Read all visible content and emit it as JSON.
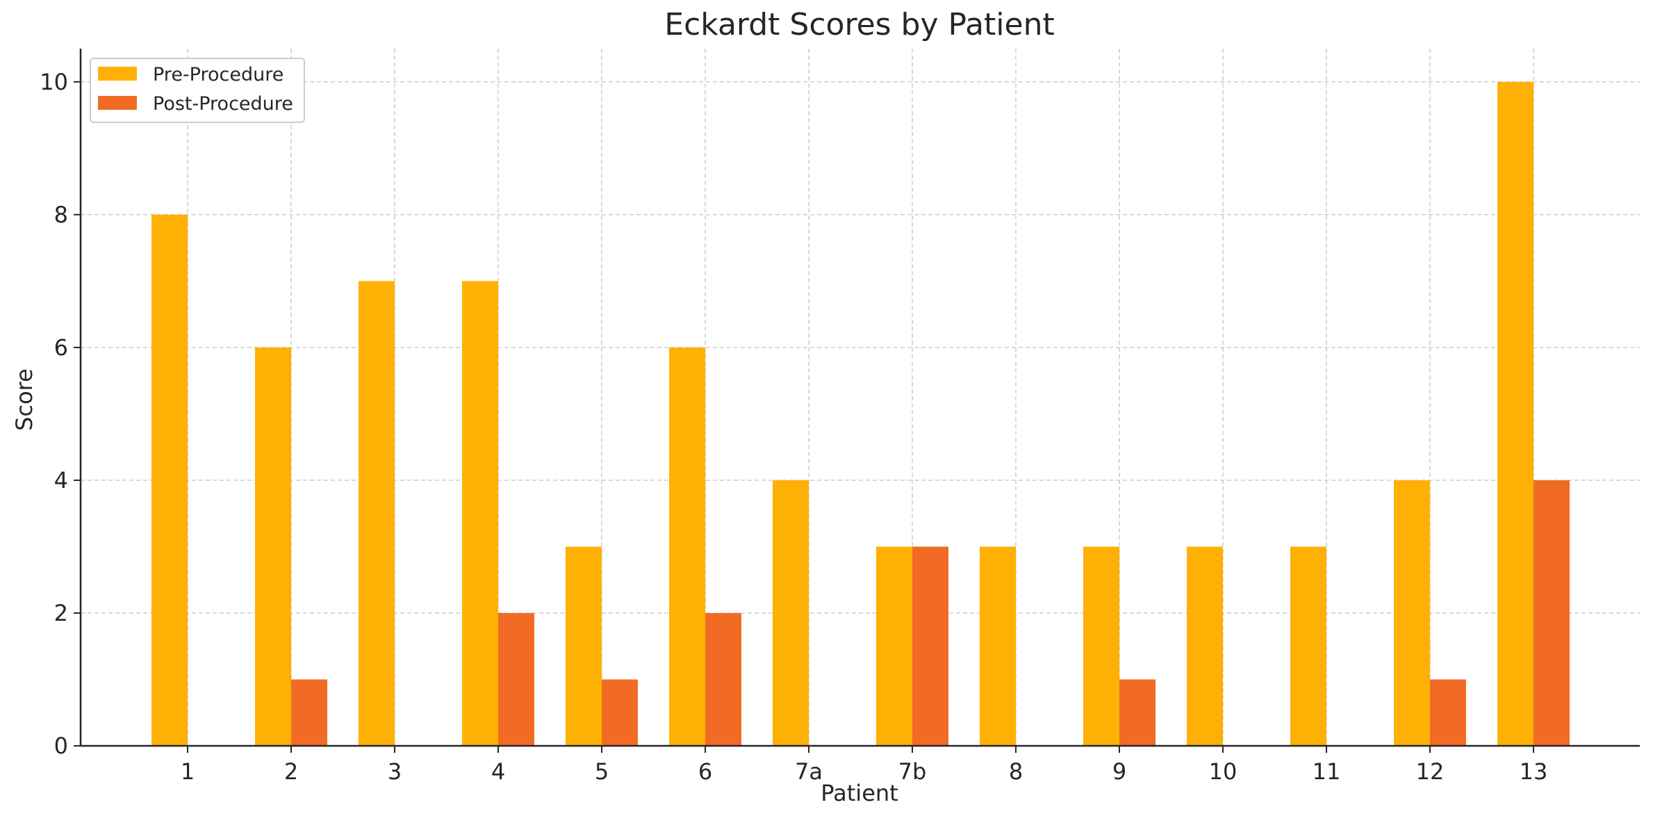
{
  "chart_data": {
    "type": "bar",
    "title": "Eckardt Scores by Patient",
    "xlabel": "Patient",
    "ylabel": "Score",
    "categories": [
      "1",
      "2",
      "3",
      "4",
      "5",
      "6",
      "7a",
      "7b",
      "8",
      "9",
      "10",
      "11",
      "12",
      "13"
    ],
    "series": [
      {
        "name": "Pre-Procedure",
        "color": "#FFB005",
        "values": [
          8,
          6,
          7,
          7,
          3,
          6,
          4,
          3,
          3,
          3,
          3,
          3,
          4,
          10
        ]
      },
      {
        "name": "Post-Procedure",
        "color": "#F26B24",
        "values": [
          0,
          1,
          0,
          2,
          1,
          2,
          0,
          3,
          0,
          1,
          0,
          0,
          1,
          4
        ]
      }
    ],
    "ylim": [
      0,
      10.5
    ],
    "yticks": [
      0,
      2,
      4,
      6,
      8,
      10
    ],
    "grid": true,
    "legend_position": "top-left"
  }
}
